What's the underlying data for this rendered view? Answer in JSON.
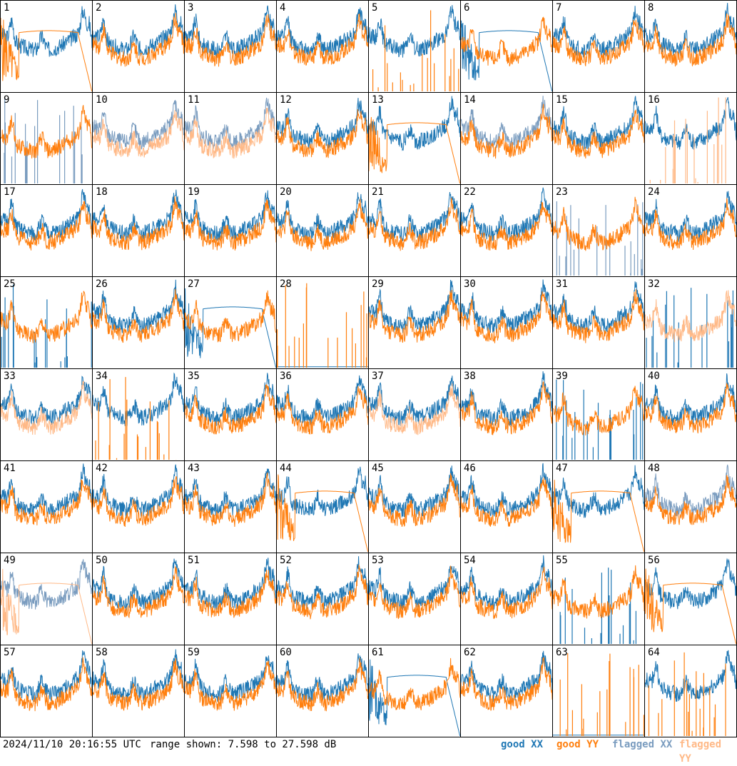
{
  "footer": {
    "timestamp": "2024/11/10 20:16:55 UTC",
    "range": "range shown: 7.598 to 27.598 dB"
  },
  "legend": [
    {
      "label_a": "good",
      "label_b": "XX",
      "color_a": "#1f77b4",
      "color_b": "#1f77b4"
    },
    {
      "label_a": "good",
      "label_b": "YY",
      "color_a": "#ff7f0e",
      "color_b": "#ff7f0e"
    },
    {
      "label_a": "flagged",
      "label_b": "XX",
      "color_a": "#7a9cbf",
      "color_b": "#7a9cbf"
    },
    {
      "label_a": "flagged",
      "label_b": "YY",
      "color_a": "#ffb987",
      "color_b": "#ffb987"
    }
  ],
  "colors": {
    "good_xx": "#1f77b4",
    "good_yy": "#ff7f0e",
    "flagged_xx": "#7a9cbf",
    "flagged_yy": "#ffb987"
  },
  "chart_data": {
    "type": "line",
    "title": "",
    "ylim_db": [
      7.598,
      27.598
    ],
    "grid_rows": 8,
    "grid_cols": 8,
    "tiles": [
      {
        "id": "1",
        "xx": "good",
        "yy": "good",
        "yy_shape": "dome"
      },
      {
        "id": "2",
        "xx": "good",
        "yy": "good"
      },
      {
        "id": "3",
        "xx": "good",
        "yy": "good"
      },
      {
        "id": "4",
        "xx": "good",
        "yy": "good"
      },
      {
        "id": "5",
        "xx": "good",
        "yy": "good",
        "yy_shape": "spikes"
      },
      {
        "id": "6",
        "xx": "good",
        "yy": "good",
        "xx_shape": "dome"
      },
      {
        "id": "7",
        "xx": "good",
        "yy": "good"
      },
      {
        "id": "8",
        "xx": "good",
        "yy": "good"
      },
      {
        "id": "9",
        "xx": "flagged",
        "yy": "good",
        "xx_shape": "spikes"
      },
      {
        "id": "10",
        "xx": "flagged",
        "yy": "flagged"
      },
      {
        "id": "11",
        "xx": "flagged",
        "yy": "flagged"
      },
      {
        "id": "12",
        "xx": "good",
        "yy": "good"
      },
      {
        "id": "13",
        "xx": "good",
        "yy": "good",
        "yy_shape": "dome"
      },
      {
        "id": "14",
        "xx": "flagged",
        "yy": "good"
      },
      {
        "id": "15",
        "xx": "good",
        "yy": "good"
      },
      {
        "id": "16",
        "xx": "good",
        "yy": "flagged",
        "yy_shape": "spikes"
      },
      {
        "id": "17",
        "xx": "good",
        "yy": "good"
      },
      {
        "id": "18",
        "xx": "good",
        "yy": "good"
      },
      {
        "id": "19",
        "xx": "good",
        "yy": "good"
      },
      {
        "id": "20",
        "xx": "good",
        "yy": "good"
      },
      {
        "id": "21",
        "xx": "good",
        "yy": "good"
      },
      {
        "id": "22",
        "xx": "good",
        "yy": "good"
      },
      {
        "id": "23",
        "xx": "flagged",
        "yy": "good",
        "xx_shape": "noise"
      },
      {
        "id": "24",
        "xx": "good",
        "yy": "good"
      },
      {
        "id": "25",
        "xx": "good",
        "yy": "good",
        "xx_shape": "spikes"
      },
      {
        "id": "26",
        "xx": "good",
        "yy": "good"
      },
      {
        "id": "27",
        "xx": "good",
        "yy": "good",
        "xx_shape": "dome"
      },
      {
        "id": "28",
        "xx": "good",
        "yy": "good",
        "yy_shape": "spikes",
        "xx_shape": "flat"
      },
      {
        "id": "29",
        "xx": "good",
        "yy": "good"
      },
      {
        "id": "30",
        "xx": "good",
        "yy": "good"
      },
      {
        "id": "31",
        "xx": "good",
        "yy": "good"
      },
      {
        "id": "32",
        "xx": "good",
        "yy": "flagged",
        "xx_shape": "spikes"
      },
      {
        "id": "33",
        "xx": "good",
        "yy": "flagged"
      },
      {
        "id": "34",
        "xx": "good",
        "yy": "good",
        "yy_shape": "spikes"
      },
      {
        "id": "35",
        "xx": "good",
        "yy": "good"
      },
      {
        "id": "36",
        "xx": "good",
        "yy": "good"
      },
      {
        "id": "37",
        "xx": "good",
        "yy": "flagged"
      },
      {
        "id": "38",
        "xx": "good",
        "yy": "good"
      },
      {
        "id": "39",
        "xx": "good",
        "yy": "good",
        "xx_shape": "spikes"
      },
      {
        "id": "40",
        "xx": "good",
        "yy": "good"
      },
      {
        "id": "41",
        "xx": "good",
        "yy": "good"
      },
      {
        "id": "42",
        "xx": "good",
        "yy": "good"
      },
      {
        "id": "43",
        "xx": "good",
        "yy": "good"
      },
      {
        "id": "44",
        "xx": "good",
        "yy": "good",
        "yy_shape": "dome"
      },
      {
        "id": "45",
        "xx": "good",
        "yy": "good"
      },
      {
        "id": "46",
        "xx": "good",
        "yy": "good"
      },
      {
        "id": "47",
        "xx": "good",
        "yy": "good",
        "yy_shape": "dome"
      },
      {
        "id": "48",
        "xx": "flagged",
        "yy": "good"
      },
      {
        "id": "49",
        "xx": "flagged",
        "yy": "flagged",
        "yy_shape": "dome"
      },
      {
        "id": "50",
        "xx": "good",
        "yy": "good"
      },
      {
        "id": "51",
        "xx": "good",
        "yy": "good"
      },
      {
        "id": "52",
        "xx": "good",
        "yy": "good"
      },
      {
        "id": "53",
        "xx": "good",
        "yy": "good"
      },
      {
        "id": "54",
        "xx": "good",
        "yy": "good"
      },
      {
        "id": "55",
        "xx": "good",
        "yy": "good",
        "xx_shape": "spikes"
      },
      {
        "id": "56",
        "xx": "good",
        "yy": "good",
        "yy_shape": "dome"
      },
      {
        "id": "57",
        "xx": "good",
        "yy": "good"
      },
      {
        "id": "58",
        "xx": "good",
        "yy": "good"
      },
      {
        "id": "59",
        "xx": "good",
        "yy": "good"
      },
      {
        "id": "60",
        "xx": "good",
        "yy": "good"
      },
      {
        "id": "61",
        "xx": "good",
        "yy": "good",
        "xx_shape": "dome"
      },
      {
        "id": "62",
        "xx": "good",
        "yy": "good"
      },
      {
        "id": "63",
        "xx": "good",
        "yy": "good",
        "yy_shape": "spikes",
        "xx_shape": "flat"
      },
      {
        "id": "64",
        "xx": "good",
        "yy": "good",
        "yy_shape": "spikes"
      }
    ]
  }
}
